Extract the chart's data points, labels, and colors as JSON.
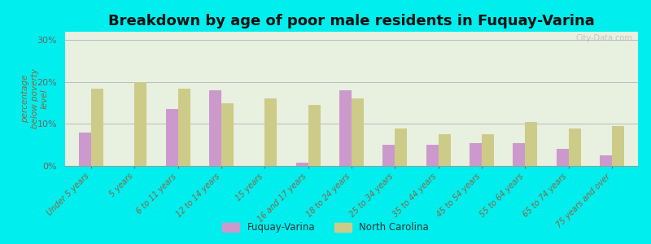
{
  "title": "Breakdown by age of poor male residents in Fuquay-Varina",
  "categories": [
    "Under 5 years",
    "5 years",
    "6 to 11 years",
    "12 to 14 years",
    "15 years",
    "16 and 17 years",
    "18 to 24 years",
    "25 to 34 years",
    "35 to 44 years",
    "45 to 54 years",
    "55 to 64 years",
    "65 to 74 years",
    "75 years and over"
  ],
  "fuquay_values": [
    8.0,
    0.0,
    13.5,
    18.0,
    0.0,
    0.8,
    18.0,
    5.0,
    5.0,
    5.5,
    5.5,
    4.0,
    2.5
  ],
  "nc_values": [
    18.5,
    20.0,
    18.5,
    15.0,
    16.0,
    14.5,
    16.0,
    9.0,
    7.5,
    7.5,
    10.5,
    9.0,
    9.5
  ],
  "fuquay_color": "#cc99cc",
  "nc_color": "#cccc88",
  "ylabel": "percentage\nbelow poverty\nlevel",
  "ylim": [
    0,
    32
  ],
  "yticks": [
    0,
    10,
    20,
    30
  ],
  "ytick_labels": [
    "0%",
    "10%",
    "20%",
    "30%"
  ],
  "bg_color": "#00eeee",
  "plot_bg_color": "#e8f0e0",
  "title_fontsize": 13,
  "watermark": "City-Data.com",
  "legend_labels": [
    "Fuquay-Varina",
    "North Carolina"
  ]
}
